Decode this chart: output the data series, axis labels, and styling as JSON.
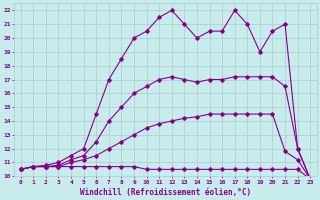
{
  "xlabel": "Windchill (Refroidissement éolien,°C)",
  "xlim": [
    -0.5,
    23.5
  ],
  "ylim": [
    10,
    22.5
  ],
  "yticks": [
    10,
    11,
    12,
    13,
    14,
    15,
    16,
    17,
    18,
    19,
    20,
    21,
    22
  ],
  "xticks": [
    0,
    1,
    2,
    3,
    4,
    5,
    6,
    7,
    8,
    9,
    10,
    11,
    12,
    13,
    14,
    15,
    16,
    17,
    18,
    19,
    20,
    21,
    22,
    23
  ],
  "bg_color": "#c8ecec",
  "line_color": "#880088",
  "grid_color": "#aacccc",
  "line1_x": [
    0,
    1,
    2,
    3,
    4,
    5,
    6,
    7,
    8,
    9,
    10,
    11,
    12,
    13,
    14,
    15,
    16,
    17,
    18,
    19,
    20,
    21,
    22,
    23
  ],
  "line1_y": [
    10.5,
    10.7,
    10.7,
    10.7,
    10.7,
    10.7,
    10.7,
    10.7,
    10.7,
    10.7,
    10.5,
    10.5,
    10.5,
    10.5,
    10.5,
    10.5,
    10.5,
    10.5,
    10.5,
    10.5,
    10.5,
    10.5,
    10.5,
    9.8
  ],
  "line2_x": [
    0,
    1,
    2,
    3,
    4,
    5,
    6,
    7,
    8,
    9,
    10,
    11,
    12,
    13,
    14,
    15,
    16,
    17,
    18,
    19,
    20,
    21,
    22,
    23
  ],
  "line2_y": [
    10.5,
    10.7,
    10.7,
    10.7,
    11.0,
    11.2,
    11.5,
    12.0,
    12.5,
    13.0,
    13.5,
    13.8,
    14.0,
    14.2,
    14.3,
    14.5,
    14.5,
    14.5,
    14.5,
    14.5,
    14.5,
    11.8,
    11.2,
    9.8
  ],
  "line3_x": [
    0,
    1,
    2,
    3,
    4,
    5,
    6,
    7,
    8,
    9,
    10,
    11,
    12,
    13,
    14,
    15,
    16,
    17,
    18,
    19,
    20,
    21,
    22,
    23
  ],
  "line3_y": [
    10.5,
    10.7,
    10.7,
    10.8,
    11.2,
    11.5,
    12.5,
    14.0,
    15.0,
    16.0,
    16.5,
    17.0,
    17.2,
    17.0,
    16.8,
    17.0,
    17.0,
    17.2,
    17.2,
    17.2,
    17.2,
    16.5,
    12.0,
    9.8
  ],
  "line4_x": [
    0,
    1,
    2,
    3,
    4,
    5,
    6,
    7,
    8,
    9,
    10,
    11,
    12,
    13,
    14,
    15,
    16,
    17,
    18,
    19,
    20,
    21,
    22,
    23
  ],
  "line4_y": [
    10.5,
    10.7,
    10.8,
    11.0,
    11.5,
    12.0,
    14.5,
    17.0,
    18.5,
    20.0,
    20.5,
    21.5,
    22.0,
    21.0,
    20.0,
    20.5,
    20.5,
    22.0,
    21.0,
    19.0,
    20.5,
    21.0,
    12.0,
    9.8
  ]
}
